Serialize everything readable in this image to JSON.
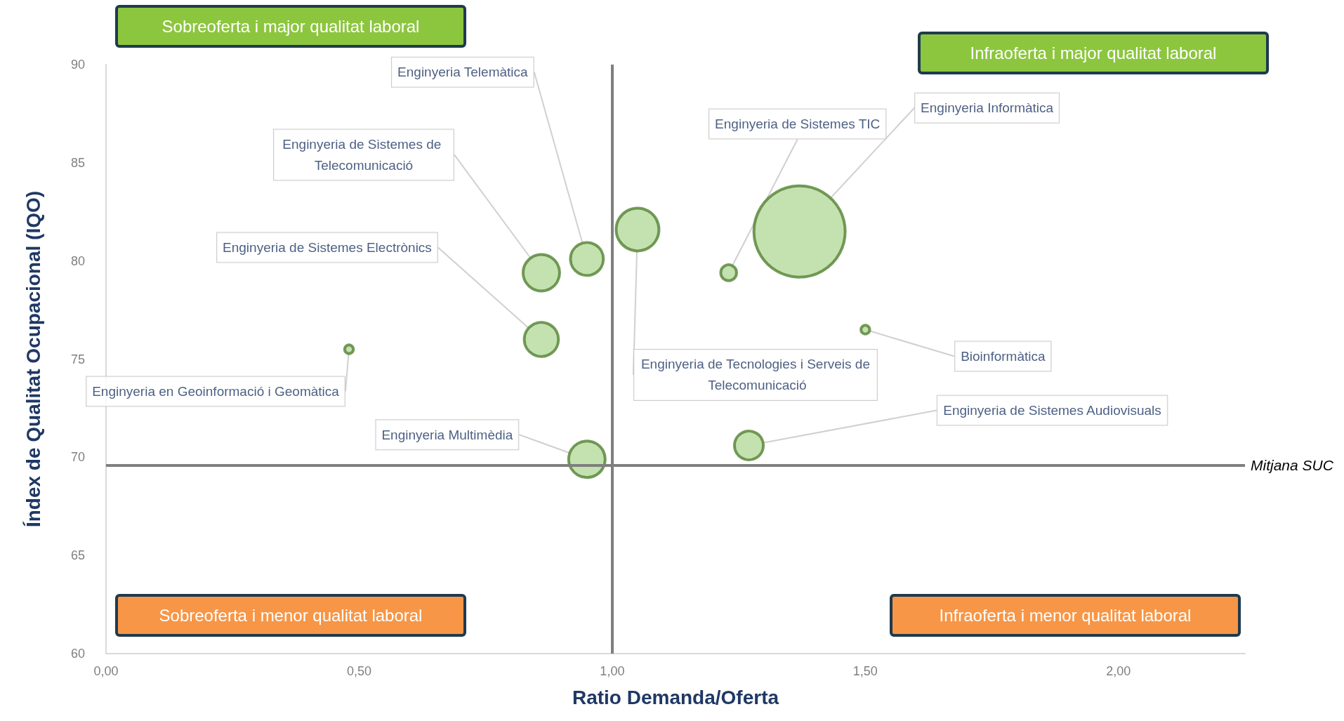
{
  "chart_data": {
    "type": "bubble",
    "xlabel": "Ratio Demanda/Oferta",
    "ylabel": "Índex de Qualitat Ocupacional (IQO)",
    "series": [
      {
        "name": "Enginyeria en Geoinformació i Geomàtica",
        "color": "#b5d99c",
        "x": [
          0.48
        ],
        "values": [
          75.5
        ],
        "sizes": [
          0.009
        ]
      },
      {
        "name": "Enginyeria de Sistemes Electrònics",
        "color": "#b5d99c",
        "x": [
          0.86
        ],
        "values": [
          76.0
        ],
        "sizes": [
          0.14
        ]
      },
      {
        "name": "Enginyeria de Sistemes de Telecomunicació",
        "color": "#b5d99c",
        "x": [
          0.86
        ],
        "values": [
          79.4
        ],
        "sizes": [
          0.16
        ]
      },
      {
        "name": "Enginyeria Telemàtica",
        "color": "#b5d99c",
        "x": [
          0.95
        ],
        "values": [
          80.1
        ],
        "sizes": [
          0.13
        ]
      },
      {
        "name": "Enginyeria Multimèdia",
        "color": "#b5d99c",
        "x": [
          0.95
        ],
        "values": [
          69.9
        ],
        "sizes": [
          0.16
        ]
      },
      {
        "name": "Enginyeria de Tecnologies i Serveis de Telecomunicació",
        "color": "#b5d99c",
        "x": [
          1.05
        ],
        "values": [
          81.6
        ],
        "sizes": [
          0.22
        ]
      },
      {
        "name": "Enginyeria de Sistemes TIC",
        "color": "#b5d99c",
        "x": [
          1.23
        ],
        "values": [
          79.4
        ],
        "sizes": [
          0.03
        ]
      },
      {
        "name": "Enginyeria Informàtica",
        "color": "#b5d99c",
        "x": [
          1.37
        ],
        "values": [
          81.5
        ],
        "sizes": [
          1
        ]
      },
      {
        "name": "Bioinformàtica",
        "color": "#b5d99c",
        "x": [
          1.5
        ],
        "values": [
          76.5
        ],
        "sizes": [
          0.009
        ]
      },
      {
        "name": "Enginyeria de Sistemes Audiovisuals",
        "color": "#b5d99c",
        "x": [
          1.27
        ],
        "values": [
          70.6
        ],
        "sizes": [
          0.1
        ]
      }
    ],
    "xlim": [
      0,
      2.25
    ],
    "xticks": [
      {
        "value": 0,
        "label": "0,00"
      },
      {
        "value": 0.5,
        "label": "0,50"
      },
      {
        "value": 1,
        "label": "1,00"
      },
      {
        "value": 1.5,
        "label": "1,50"
      },
      {
        "value": 2,
        "label": "2,00"
      }
    ],
    "ylim": [
      60,
      90
    ],
    "yticks": [
      60,
      65,
      70,
      75,
      80,
      85,
      90
    ],
    "grid": false,
    "legend": false,
    "ref_lines": [
      {
        "axis": "x",
        "value": 1,
        "label": null,
        "color": "#7f7f7f"
      },
      {
        "axis": "y",
        "value": 69.6,
        "label": "Mitjana SUC",
        "color": "#7f7f7f"
      }
    ],
    "annotations": [
      "Sobreoferta i major qualitat laboral",
      "Infraoferta i major qualitat laboral",
      "Sobreoferta i menor qualitat laboral",
      "Infraoferta i menor qualitat laboral"
    ]
  }
}
